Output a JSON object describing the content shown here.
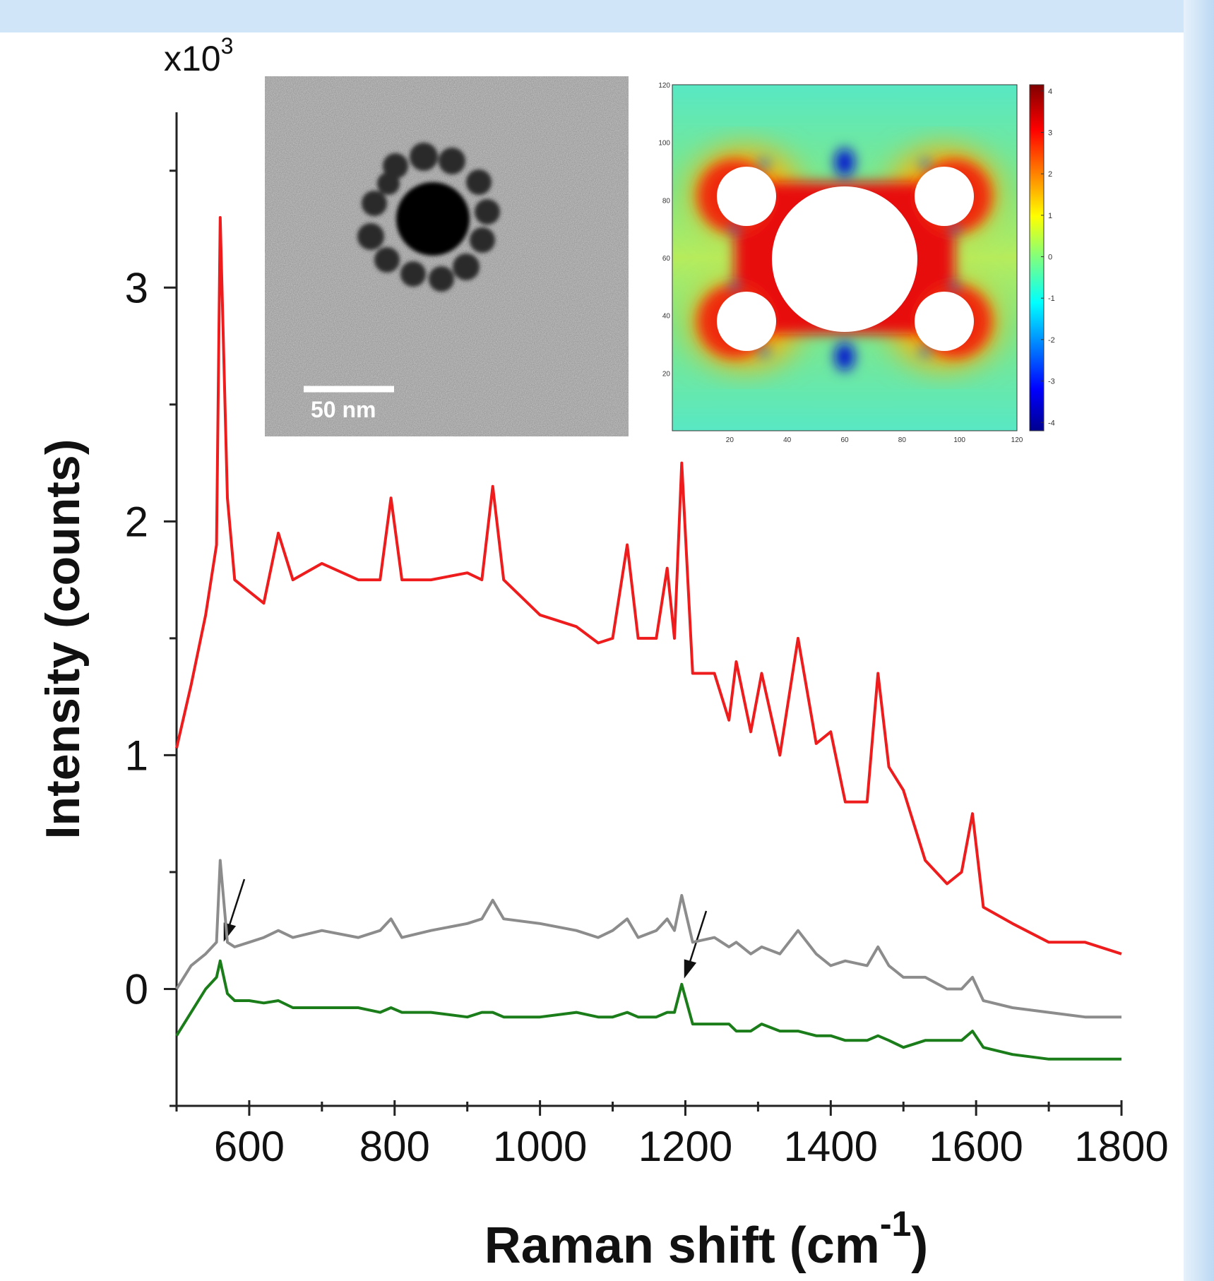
{
  "chart_data": {
    "type": "line",
    "y_multiplier": [
      "x10",
      "3"
    ],
    "ylabel": "Intensity (counts)",
    "xlabel": [
      "Raman shift (cm",
      "-1",
      ")"
    ],
    "x": [
      500,
      520,
      540,
      555,
      560,
      570,
      580,
      600,
      620,
      640,
      660,
      700,
      750,
      780,
      795,
      810,
      850,
      900,
      920,
      935,
      950,
      1000,
      1050,
      1080,
      1100,
      1120,
      1135,
      1160,
      1175,
      1185,
      1195,
      1210,
      1240,
      1260,
      1270,
      1290,
      1305,
      1330,
      1355,
      1380,
      1400,
      1420,
      1450,
      1465,
      1480,
      1500,
      1530,
      1560,
      1580,
      1595,
      1610,
      1650,
      1700,
      1750,
      1800
    ],
    "series": [
      {
        "color": "#ee1c1c",
        "values": [
          1.03,
          1.3,
          1.6,
          1.9,
          3.3,
          2.1,
          1.75,
          1.7,
          1.65,
          1.95,
          1.75,
          1.82,
          1.75,
          1.75,
          2.1,
          1.75,
          1.75,
          1.78,
          1.75,
          2.15,
          1.75,
          1.6,
          1.55,
          1.48,
          1.5,
          1.9,
          1.5,
          1.5,
          1.8,
          1.5,
          2.25,
          1.35,
          1.35,
          1.15,
          1.4,
          1.1,
          1.35,
          1.0,
          1.5,
          1.05,
          1.1,
          0.8,
          0.8,
          1.35,
          0.95,
          0.85,
          0.55,
          0.45,
          0.5,
          0.75,
          0.35,
          0.28,
          0.2,
          0.2,
          0.15
        ]
      },
      {
        "color": "#8c8c8c",
        "values": [
          0.0,
          0.1,
          0.15,
          0.2,
          0.55,
          0.2,
          0.18,
          0.2,
          0.22,
          0.25,
          0.22,
          0.25,
          0.22,
          0.25,
          0.3,
          0.22,
          0.25,
          0.28,
          0.3,
          0.38,
          0.3,
          0.28,
          0.25,
          0.22,
          0.25,
          0.3,
          0.22,
          0.25,
          0.3,
          0.25,
          0.4,
          0.2,
          0.22,
          0.18,
          0.2,
          0.15,
          0.18,
          0.15,
          0.25,
          0.15,
          0.1,
          0.12,
          0.1,
          0.18,
          0.1,
          0.05,
          0.05,
          0.0,
          0.0,
          0.05,
          -0.05,
          -0.08,
          -0.1,
          -0.12,
          -0.12
        ]
      },
      {
        "color": "#1a7d1a",
        "values": [
          -0.2,
          -0.1,
          0.0,
          0.05,
          0.12,
          -0.02,
          -0.05,
          -0.05,
          -0.06,
          -0.05,
          -0.08,
          -0.08,
          -0.08,
          -0.1,
          -0.08,
          -0.1,
          -0.1,
          -0.12,
          -0.1,
          -0.1,
          -0.12,
          -0.12,
          -0.1,
          -0.12,
          -0.12,
          -0.1,
          -0.12,
          -0.12,
          -0.1,
          -0.1,
          0.02,
          -0.15,
          -0.15,
          -0.15,
          -0.18,
          -0.18,
          -0.15,
          -0.18,
          -0.18,
          -0.2,
          -0.2,
          -0.22,
          -0.22,
          -0.2,
          -0.22,
          -0.25,
          -0.22,
          -0.22,
          -0.22,
          -0.18,
          -0.25,
          -0.28,
          -0.3,
          -0.3,
          -0.3
        ]
      }
    ],
    "xlim": [
      500,
      1800
    ],
    "xticks": [
      600,
      800,
      1000,
      1200,
      1400,
      1600,
      1800
    ],
    "xminorticks": [
      500,
      700,
      900,
      1100,
      1300,
      1500,
      1700
    ],
    "ylim": [
      -0.5,
      3.75
    ],
    "yticks": [
      0,
      1,
      2,
      3
    ],
    "yminorticks": [
      -0.5,
      0.5,
      1.5,
      2.5,
      3.5
    ],
    "grid": false,
    "insets": {
      "tem": {
        "scale_label": "50 nm"
      },
      "field_map": {
        "xlim": [
          0,
          120
        ],
        "ylim": [
          0,
          120
        ],
        "xticks": [
          20,
          40,
          60,
          80,
          100,
          120
        ],
        "yticks": [
          20,
          40,
          60,
          80,
          100,
          120
        ],
        "clim": [
          -4.2,
          4.15
        ],
        "colorbar_ticks": [
          -4,
          -3,
          -2,
          -1,
          0,
          1,
          2,
          3,
          4
        ]
      }
    }
  }
}
